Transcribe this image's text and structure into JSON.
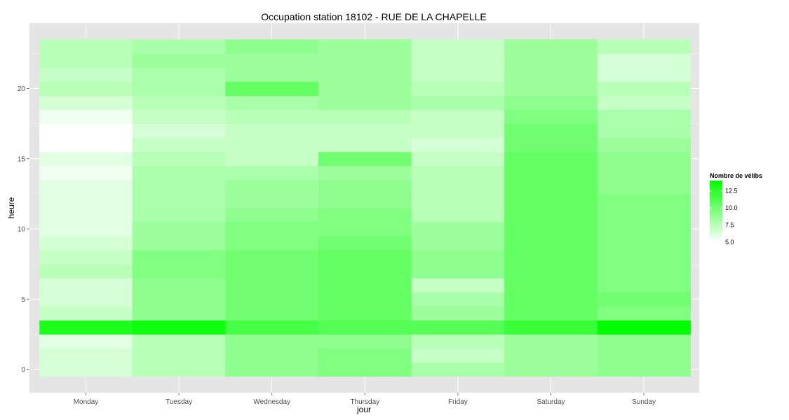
{
  "chart_data": {
    "type": "heatmap",
    "title": "Occupation station 18102 - RUE DE LA CHAPELLE",
    "xlabel": "jour",
    "ylabel": "heure",
    "x_categories": [
      "Monday",
      "Tuesday",
      "Wednesday",
      "Thursday",
      "Friday",
      "Saturday",
      "Sunday"
    ],
    "y_hours": [
      0,
      1,
      2,
      3,
      4,
      5,
      6,
      7,
      8,
      9,
      10,
      11,
      12,
      13,
      14,
      15,
      16,
      17,
      18,
      19,
      20,
      21,
      22,
      23
    ],
    "y_ticks": [
      0,
      5,
      10,
      15,
      20
    ],
    "ylim": [
      -0.5,
      23.5
    ],
    "grid": true,
    "legend": {
      "title": "Nombre de vélibs",
      "labels": [
        "12.5",
        "10.0",
        "7.5",
        "5.0"
      ],
      "breaks": [
        12.5,
        10.0,
        7.5,
        5.0
      ],
      "range": [
        5.0,
        14.0
      ],
      "placement": "right",
      "low_color": "#ffffff",
      "high_color": "#00ff00"
    },
    "values": [
      [
        6.5,
        7.5,
        9.0,
        9.5,
        8.0,
        8.5,
        9.0
      ],
      [
        6.5,
        7.5,
        9.0,
        9.5,
        7.0,
        8.5,
        9.0
      ],
      [
        6.0,
        7.5,
        9.0,
        9.0,
        7.5,
        8.5,
        9.0
      ],
      [
        13.0,
        13.5,
        11.5,
        11.0,
        11.0,
        12.0,
        14.0
      ],
      [
        7.0,
        9.0,
        10.0,
        10.5,
        8.5,
        10.5,
        9.5
      ],
      [
        6.5,
        9.0,
        10.0,
        10.5,
        8.0,
        10.5,
        10.0
      ],
      [
        6.5,
        9.0,
        10.0,
        10.5,
        7.0,
        10.5,
        9.5
      ],
      [
        7.5,
        9.5,
        10.0,
        10.5,
        9.0,
        10.5,
        9.5
      ],
      [
        7.0,
        9.5,
        10.0,
        10.5,
        9.0,
        10.5,
        9.5
      ],
      [
        6.5,
        8.5,
        9.5,
        10.0,
        8.5,
        10.5,
        9.5
      ],
      [
        6.0,
        8.5,
        9.5,
        9.5,
        8.5,
        10.5,
        9.5
      ],
      [
        6.0,
        8.0,
        9.0,
        9.5,
        7.5,
        10.5,
        9.5
      ],
      [
        6.0,
        8.0,
        8.5,
        9.0,
        7.5,
        10.5,
        9.5
      ],
      [
        6.0,
        8.0,
        8.5,
        9.0,
        7.5,
        10.5,
        9.0
      ],
      [
        5.5,
        8.0,
        8.0,
        8.5,
        7.5,
        10.5,
        9.0
      ],
      [
        6.0,
        7.5,
        7.0,
        10.0,
        7.0,
        10.5,
        9.0
      ],
      [
        5.0,
        7.0,
        7.0,
        7.0,
        6.5,
        10.0,
        8.5
      ],
      [
        5.0,
        6.5,
        7.0,
        7.0,
        7.0,
        10.0,
        8.0
      ],
      [
        5.5,
        7.0,
        7.5,
        7.5,
        7.0,
        9.5,
        8.0
      ],
      [
        6.5,
        7.5,
        8.0,
        8.5,
        8.0,
        9.0,
        7.0
      ],
      [
        7.5,
        8.0,
        10.5,
        8.5,
        7.5,
        8.5,
        7.5
      ],
      [
        7.0,
        8.0,
        8.5,
        8.5,
        7.0,
        8.5,
        6.5
      ],
      [
        7.5,
        8.5,
        8.5,
        8.5,
        7.0,
        8.5,
        6.5
      ],
      [
        7.5,
        8.0,
        9.0,
        8.5,
        7.0,
        8.5,
        7.5
      ]
    ]
  }
}
